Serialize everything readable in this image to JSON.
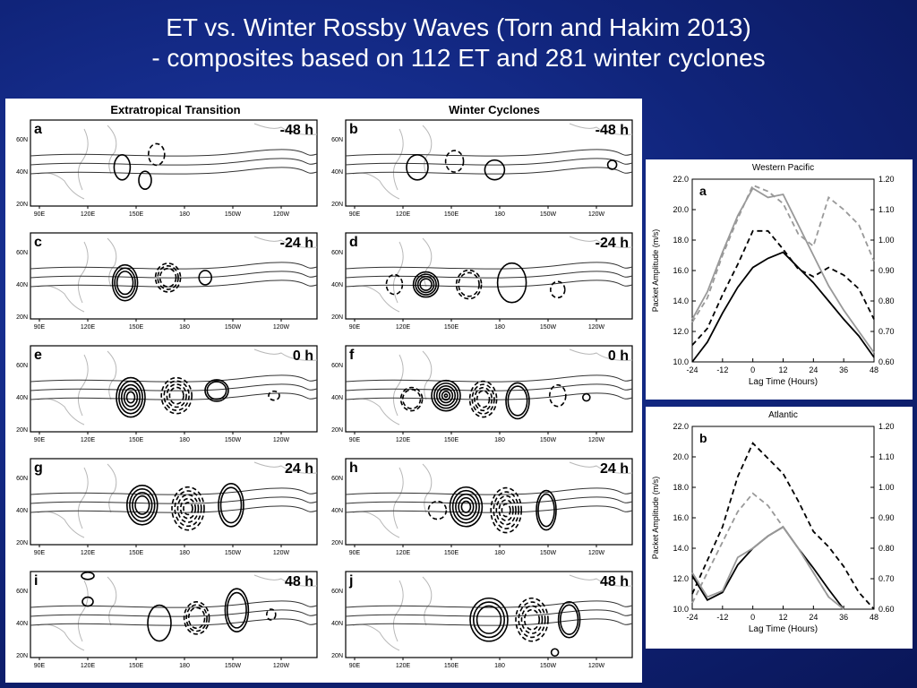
{
  "slide": {
    "title_line1": "ET vs. Winter Rossby Waves (Torn and Hakim 2013)",
    "title_line2": "- composites based on 112 ET and 281 winter cyclones"
  },
  "maps": {
    "left_column_title": "Extratropical Transition",
    "right_column_title": "Winter Cyclones",
    "lon_ticks": [
      "90E",
      "120E",
      "150E",
      "180",
      "150W",
      "120W"
    ],
    "lat_ticks": [
      "60N",
      "40N",
      "20N"
    ],
    "panels": [
      {
        "letter": "a",
        "lag": "-48 h"
      },
      {
        "letter": "b",
        "lag": "-48 h"
      },
      {
        "letter": "c",
        "lag": "-24 h"
      },
      {
        "letter": "d",
        "lag": "-24 h"
      },
      {
        "letter": "e",
        "lag": "0 h"
      },
      {
        "letter": "f",
        "lag": "0 h"
      },
      {
        "letter": "g",
        "lag": "24 h"
      },
      {
        "letter": "h",
        "lag": "24 h"
      },
      {
        "letter": "i",
        "lag": "48 h"
      },
      {
        "letter": "j",
        "lag": "48 h"
      }
    ]
  },
  "chart_data": [
    {
      "type": "line",
      "panel_letter": "a",
      "title": "Western Pacific",
      "xlabel": "Lag Time (Hours)",
      "ylabel": "Packet Amplitude (m/s)",
      "x": [
        -24,
        -18,
        -12,
        -6,
        0,
        6,
        12,
        18,
        24,
        30,
        36,
        42,
        48
      ],
      "xticks": [
        "-24",
        "-12",
        "0",
        "12",
        "24",
        "36",
        "48"
      ],
      "ylim": [
        10,
        22
      ],
      "yticks": [
        "10.0",
        "12.0",
        "14.0",
        "16.0",
        "18.0",
        "20.0",
        "22.0"
      ],
      "y2lim": [
        0.6,
        1.2
      ],
      "y2ticks": [
        "0.60",
        "0.70",
        "0.80",
        "0.90",
        "1.00",
        "1.10",
        "1.20"
      ],
      "series": [
        {
          "style": "solid",
          "color": "#000000",
          "axis": "left",
          "values": [
            10.0,
            11.3,
            13.2,
            14.9,
            16.2,
            16.8,
            17.2,
            16.2,
            15.2,
            14.0,
            12.8,
            11.7,
            10.3
          ]
        },
        {
          "style": "dashed",
          "color": "#000000",
          "axis": "left",
          "values": [
            11.1,
            12.2,
            14.4,
            16.4,
            18.6,
            18.6,
            17.4,
            16.1,
            15.6,
            16.2,
            15.7,
            14.8,
            12.8
          ]
        },
        {
          "style": "solid",
          "color": "#999999",
          "axis": "right",
          "values": [
            0.74,
            0.83,
            0.96,
            1.08,
            1.17,
            1.14,
            1.15,
            1.05,
            0.95,
            0.85,
            0.77,
            0.7,
            0.63
          ]
        },
        {
          "style": "dashed",
          "color": "#999999",
          "axis": "right",
          "values": [
            0.73,
            0.81,
            0.95,
            1.07,
            1.18,
            1.16,
            1.12,
            1.02,
            0.98,
            1.14,
            1.1,
            1.05,
            0.93
          ]
        }
      ]
    },
    {
      "type": "line",
      "panel_letter": "b",
      "title": "Atlantic",
      "xlabel": "Lag Time (Hours)",
      "ylabel": "Packet Amplitude (m/s)",
      "x": [
        -24,
        -18,
        -12,
        -6,
        0,
        6,
        12,
        18,
        24,
        30,
        36,
        42,
        48
      ],
      "xticks": [
        "-24",
        "-12",
        "0",
        "12",
        "24",
        "36",
        "48"
      ],
      "ylim": [
        10,
        22
      ],
      "yticks": [
        "10.0",
        "12.0",
        "14.0",
        "16.0",
        "18.0",
        "20.0",
        "22.0"
      ],
      "y2lim": [
        0.6,
        1.2
      ],
      "y2ticks": [
        "0.60",
        "0.70",
        "0.80",
        "0.90",
        "1.00",
        "1.10",
        "1.20"
      ],
      "series": [
        {
          "style": "solid",
          "color": "#000000",
          "axis": "left",
          "values": [
            12.2,
            10.6,
            11.1,
            12.9,
            14.0,
            14.8,
            15.4,
            14.0,
            12.7,
            11.3,
            10.0,
            null,
            null
          ]
        },
        {
          "style": "dashed",
          "color": "#000000",
          "axis": "left",
          "values": [
            11.0,
            13.2,
            15.4,
            18.7,
            20.9,
            19.9,
            18.9,
            17.1,
            15.1,
            14.1,
            12.8,
            11.1,
            10.0
          ]
        },
        {
          "style": "solid",
          "color": "#999999",
          "axis": "right",
          "values": [
            0.72,
            0.64,
            0.66,
            0.77,
            0.8,
            0.84,
            0.87,
            0.8,
            0.72,
            0.64,
            0.6,
            null,
            null
          ]
        },
        {
          "style": "dashed",
          "color": "#999999",
          "axis": "right",
          "values": [
            0.62,
            0.72,
            0.82,
            0.92,
            0.98,
            0.94,
            0.87,
            0.8,
            0.72,
            0.64,
            0.6,
            null,
            null
          ]
        }
      ]
    }
  ]
}
